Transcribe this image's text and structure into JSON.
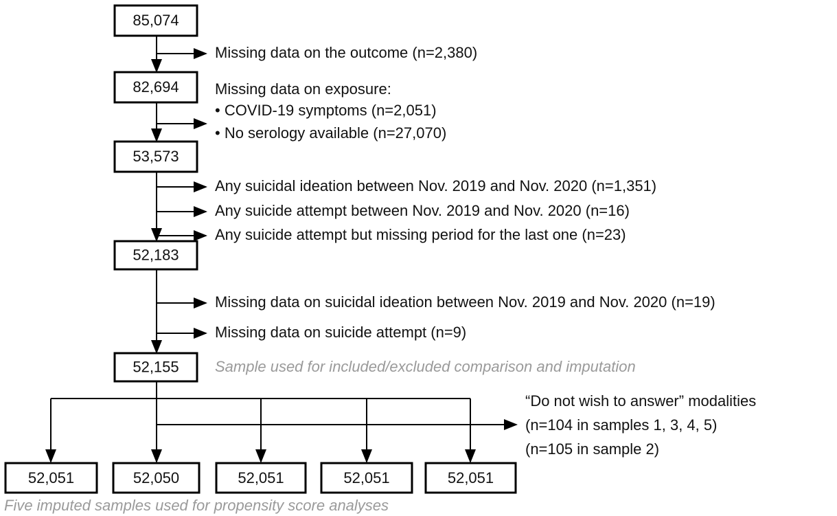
{
  "nodes": [
    {
      "label": "85,074"
    },
    {
      "label": "82,694"
    },
    {
      "label": "53,573"
    },
    {
      "label": "52,183"
    },
    {
      "label": "52,155"
    }
  ],
  "exclusions": [
    {
      "lines": [
        "Missing data on the outcome (n=2,380)"
      ]
    },
    {
      "lines": [
        "Missing data on exposure:",
        "• COVID-19 symptoms (n=2,051)",
        "• No serology available (n=27,070)"
      ]
    },
    {
      "lines": [
        "Any suicidal ideation between Nov. 2019 and Nov. 2020 (n=1,351)"
      ]
    },
    {
      "lines": [
        "Any suicide attempt between Nov. 2019 and Nov. 2020 (n=16)"
      ]
    },
    {
      "lines": [
        "Any suicide attempt but missing period for the last one (n=23)"
      ]
    },
    {
      "lines": [
        "Missing data on suicidal ideation between Nov. 2019 and Nov. 2020 (n=19)"
      ]
    },
    {
      "lines": [
        "Missing data on suicide attempt (n=9)"
      ]
    },
    {
      "lines": [
        "“Do not wish to answer” modalities",
        "(n=104 in samples 1, 3, 4, 5)",
        "(n=105 in sample 2)"
      ]
    }
  ],
  "notes": {
    "comparison_sample": "Sample used for included/excluded comparison and imputation",
    "imputed_samples": "Five imputed samples used for propensity score analyses"
  },
  "imputed_samples": [
    {
      "label": "52,051"
    },
    {
      "label": "52,050"
    },
    {
      "label": "52,051"
    },
    {
      "label": "52,051"
    },
    {
      "label": "52,051"
    }
  ]
}
